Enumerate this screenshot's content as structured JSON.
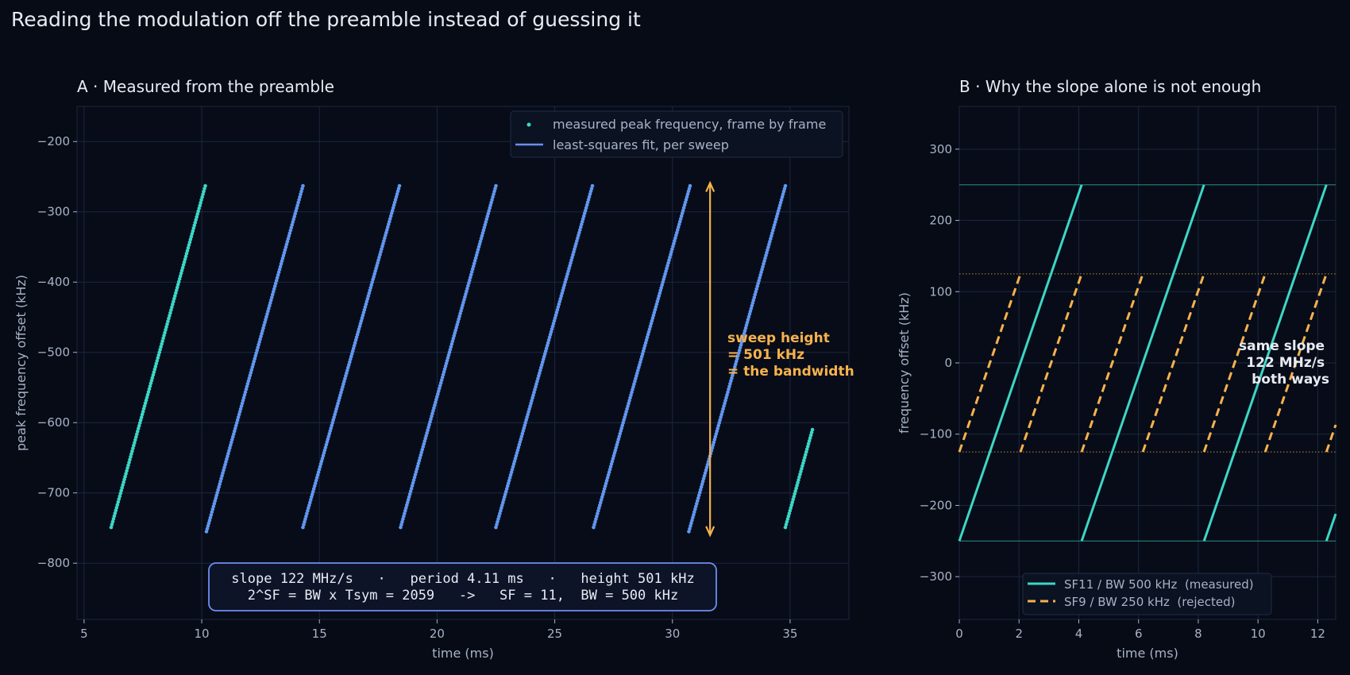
{
  "figure": {
    "title": "Reading the modulation off the preamble instead of guessing it"
  },
  "colors": {
    "bg": "#060b16",
    "grid": "#1d2640",
    "text": "#e8ebf2",
    "muted": "#a9b2c6",
    "teal": "#3dd6c6",
    "blue": "#5b9cf0",
    "fitline": "#6d8ef0",
    "orange": "#f7b24c"
  },
  "chart_data": [
    {
      "type": "scatter",
      "title": "A · Measured from the preamble",
      "xlabel": "time  (ms)",
      "ylabel": "peak frequency offset  (kHz)",
      "xlim": [
        4.7,
        37.5
      ],
      "ylim": [
        -880,
        -150
      ],
      "xticks": [
        5,
        10,
        15,
        20,
        25,
        30,
        35
      ],
      "yticks": [
        -800,
        -700,
        -600,
        -500,
        -400,
        -300,
        -200
      ],
      "grid": true,
      "legend_position": "top-right",
      "legend": [
        {
          "label": "measured peak frequency, frame by frame",
          "kind": "point"
        },
        {
          "label": "least-squares fit, per sweep",
          "kind": "line"
        }
      ],
      "sweeps": [
        {
          "x_start": 6.15,
          "x_end": 10.15,
          "y_start": -749,
          "y_end": -263,
          "fitted": false
        },
        {
          "x_start": 10.2,
          "x_end": 14.3,
          "y_start": -755,
          "y_end": -263,
          "fitted": true
        },
        {
          "x_start": 14.3,
          "x_end": 18.4,
          "y_start": -749,
          "y_end": -263,
          "fitted": true
        },
        {
          "x_start": 18.45,
          "x_end": 22.5,
          "y_start": -749,
          "y_end": -263,
          "fitted": true
        },
        {
          "x_start": 22.5,
          "x_end": 26.6,
          "y_start": -749,
          "y_end": -263,
          "fitted": true
        },
        {
          "x_start": 26.65,
          "x_end": 30.75,
          "y_start": -749,
          "y_end": -263,
          "fitted": true
        },
        {
          "x_start": 30.7,
          "x_end": 34.8,
          "y_start": -755,
          "y_end": -263,
          "fitted": true
        },
        {
          "x_start": 34.8,
          "x_end": 35.95,
          "y_start": -749,
          "y_end": -610,
          "fitted": false
        }
      ],
      "annotation_arrow": {
        "x": 31.6,
        "y_top": -259,
        "y_bottom": -760
      },
      "annotation_text": [
        "sweep height",
        "= 501 kHz",
        "= the bandwidth"
      ],
      "info_box": [
        "slope 122 MHz/s   ·   period 4.11 ms   ·   height 501 kHz",
        "2^SF = BW x Tsym = 2059   ->   SF = 11,  BW = 500 kHz"
      ]
    },
    {
      "type": "line",
      "title": "B · Why the slope alone is not enough",
      "xlabel": "time  (ms)",
      "ylabel": "frequency offset  (kHz)",
      "xlim": [
        0,
        12.6
      ],
      "ylim": [
        -360,
        360
      ],
      "xticks": [
        0,
        2,
        4,
        6,
        8,
        10,
        12
      ],
      "yticks": [
        -300,
        -200,
        -100,
        0,
        100,
        200,
        300
      ],
      "grid": true,
      "legend_position": "bottom-center",
      "series": [
        {
          "name": "SF11 / BW 500 kHz  (measured)",
          "style": "solid",
          "period_ms": 4.096,
          "f_low": -250,
          "f_high": 250
        },
        {
          "name": "SF9 / BW 250 kHz  (rejected)",
          "style": "dashed",
          "period_ms": 2.048,
          "f_low": -125,
          "f_high": 125
        }
      ],
      "reference_levels": [
        {
          "y": 250,
          "style": "solid"
        },
        {
          "y": -250,
          "style": "solid"
        },
        {
          "y": 125,
          "style": "dotted"
        },
        {
          "y": -125,
          "style": "dotted"
        }
      ],
      "annotation_text": [
        "same slope",
        "122 MHz/s",
        "both ways"
      ]
    }
  ]
}
